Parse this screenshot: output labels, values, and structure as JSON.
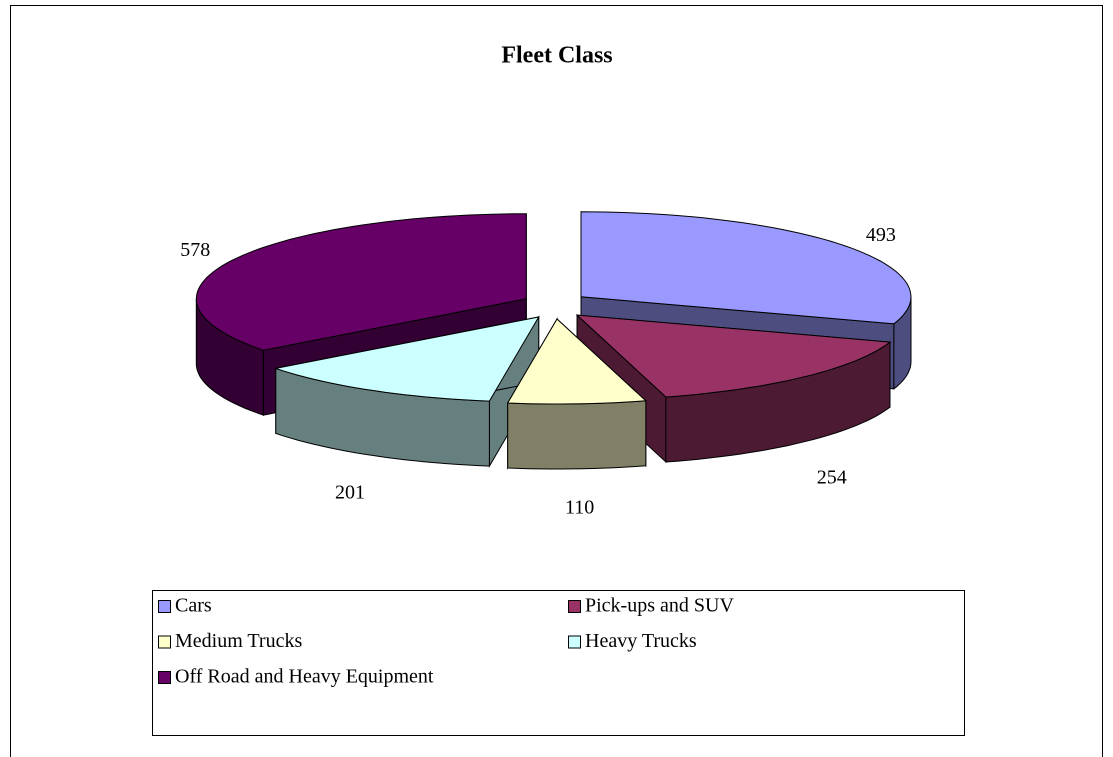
{
  "chart_data": {
    "type": "pie3d",
    "title": "Fleet Class",
    "categories": [
      "Cars",
      "Pick-ups and SUV",
      "Medium Trucks",
      "Heavy Trucks",
      "Off Road and Heavy Equipment"
    ],
    "values": [
      493,
      254,
      110,
      201,
      578
    ],
    "colors": [
      "#9999ff",
      "#993366",
      "#ffffcc",
      "#ccffff",
      "#660066"
    ],
    "legend": "bottom"
  }
}
